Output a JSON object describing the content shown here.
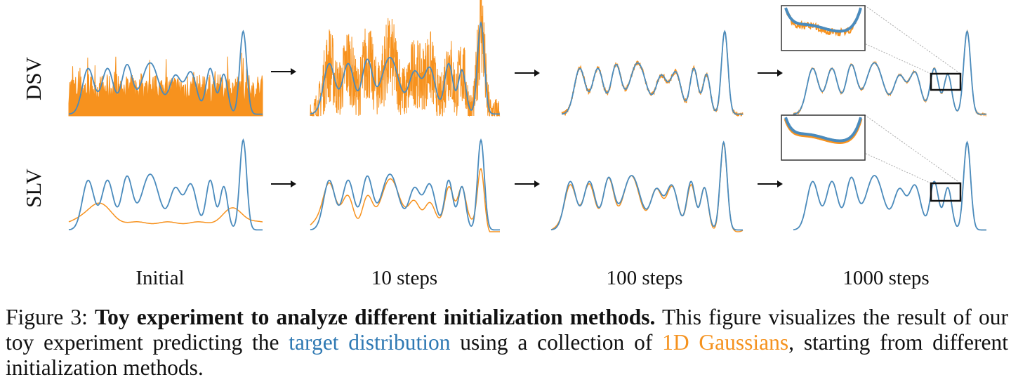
{
  "figure": {
    "row_labels": [
      "DSV",
      "SLV"
    ],
    "column_labels": [
      "Initial",
      "10 steps",
      "100 steps",
      "1000 steps"
    ],
    "arrow_glyph": "→"
  },
  "caption": {
    "figure_number": "Figure 3:",
    "bold_title": "Toy experiment to analyze different initialization methods.",
    "text_1": "This figure visualizes the result of our toy experiment predicting the",
    "target_term": "target distribution",
    "text_2": "using a collection of",
    "gaussian_term": "1D Gaussians",
    "text_3": ", starting from different initialization methods."
  },
  "colors": {
    "target": "#4a8bbd",
    "prediction": "#f7921e"
  },
  "chart_data": {
    "type": "line",
    "title": "",
    "xlabel": "",
    "ylabel": "",
    "description_free": true,
    "series": [
      {
        "name": "target distribution",
        "color": "#4a8bbd"
      },
      {
        "name": "1D Gaussians",
        "color": "#f7921e"
      }
    ],
    "rows": [
      "DSV",
      "SLV"
    ],
    "columns": [
      "Initial",
      "10 steps",
      "100 steps",
      "1000 steps"
    ]
  }
}
